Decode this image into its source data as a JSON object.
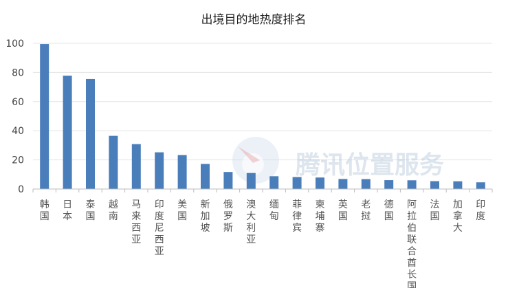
{
  "chart_data": {
    "type": "bar",
    "title": "出境目的地热度排名",
    "xlabel": "",
    "ylabel": "",
    "ylim": [
      0,
      100
    ],
    "yticks": [
      0,
      20,
      40,
      60,
      80,
      100
    ],
    "grid": true,
    "legend": "none",
    "bar_color": "#4a7ebb",
    "categories": [
      "韩国",
      "日本",
      "泰国",
      "越南",
      "马来西亚",
      "印度尼西亚",
      "美国",
      "新加坡",
      "俄罗斯",
      "澳大利亚",
      "缅甸",
      "菲律宾",
      "柬埔寨",
      "英国",
      "老挝",
      "德国",
      "阿拉伯联合酋长国",
      "法国",
      "加拿大",
      "印度"
    ],
    "values": [
      99.5,
      77.8,
      75.5,
      36.5,
      30.8,
      25.2,
      23.3,
      17.2,
      11.7,
      11.0,
      8.8,
      8.2,
      7.9,
      6.9,
      6.8,
      6.1,
      6.0,
      5.4,
      5.3,
      4.6
    ]
  },
  "watermark": {
    "text": "腾讯位置服务",
    "icon": "tencent-location-logo-icon"
  }
}
